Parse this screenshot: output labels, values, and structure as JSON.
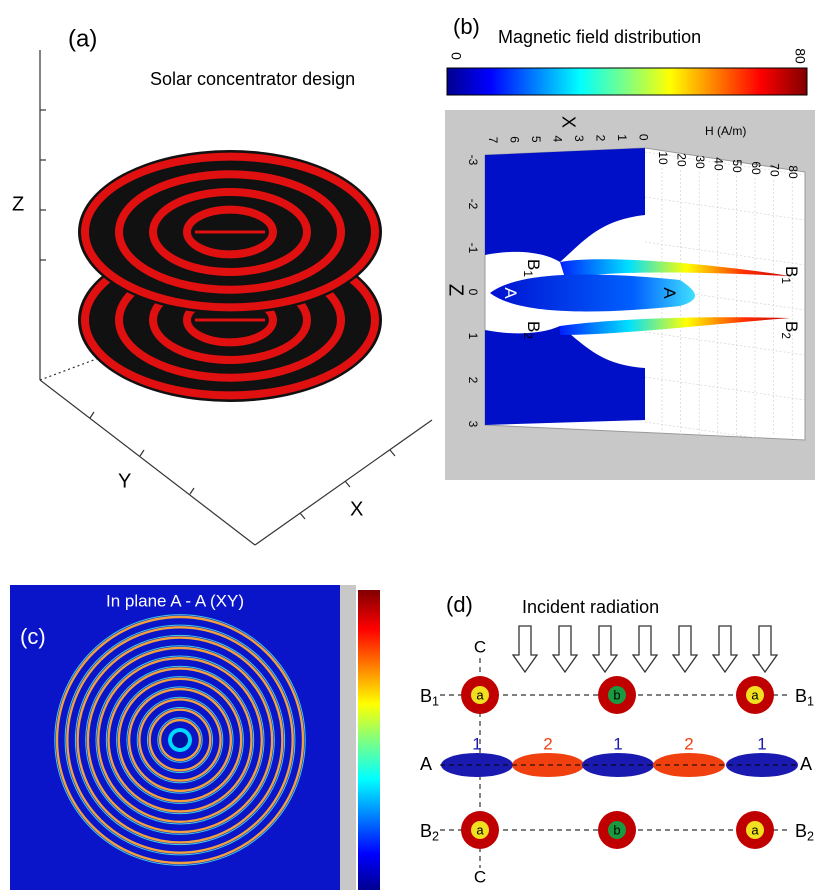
{
  "panel_a": {
    "label": "(a)",
    "title": "Solar concentrator design",
    "axes": {
      "z": "Z",
      "y": "Y",
      "x": "X"
    }
  },
  "panel_b": {
    "label": "(b)",
    "title": "Magnetic field distribution",
    "colorbar": {
      "min": 0,
      "max": 80
    },
    "x_axis": {
      "label": "X",
      "ticks": [
        7,
        6,
        5,
        4,
        3,
        2,
        1,
        0
      ]
    },
    "h_axis": {
      "label": "H (A/m)",
      "ticks": [
        10,
        20,
        30,
        40,
        50,
        60,
        70,
        80
      ]
    },
    "z_axis": {
      "label": "Z",
      "ticks": [
        -3,
        -2,
        -1,
        0,
        1,
        2,
        3
      ]
    },
    "markers": [
      {
        "main": "B",
        "sub": "1"
      },
      {
        "main": "A"
      },
      {
        "main": "B",
        "sub": "2"
      },
      {
        "main": "A"
      },
      {
        "main": "B",
        "sub": "1"
      },
      {
        "main": "B",
        "sub": "2"
      }
    ]
  },
  "panel_c": {
    "label": "(c)",
    "title": "In plane A - A (XY)"
  },
  "panel_d": {
    "label": "(d)",
    "title": "Incident radiation",
    "c_top": "C",
    "c_bottom": "C",
    "b1_left": {
      "main": "B",
      "sub": "1"
    },
    "b1_right": {
      "main": "B",
      "sub": "1"
    },
    "b2_left": {
      "main": "B",
      "sub": "2"
    },
    "b2_right": {
      "main": "B",
      "sub": "2"
    },
    "a_left": "A",
    "a_right": "A",
    "segments": [
      1,
      2,
      1,
      2,
      1
    ],
    "top_particles": [
      "a",
      "b",
      "a"
    ],
    "bottom_particles": [
      "a",
      "b",
      "a"
    ]
  }
}
